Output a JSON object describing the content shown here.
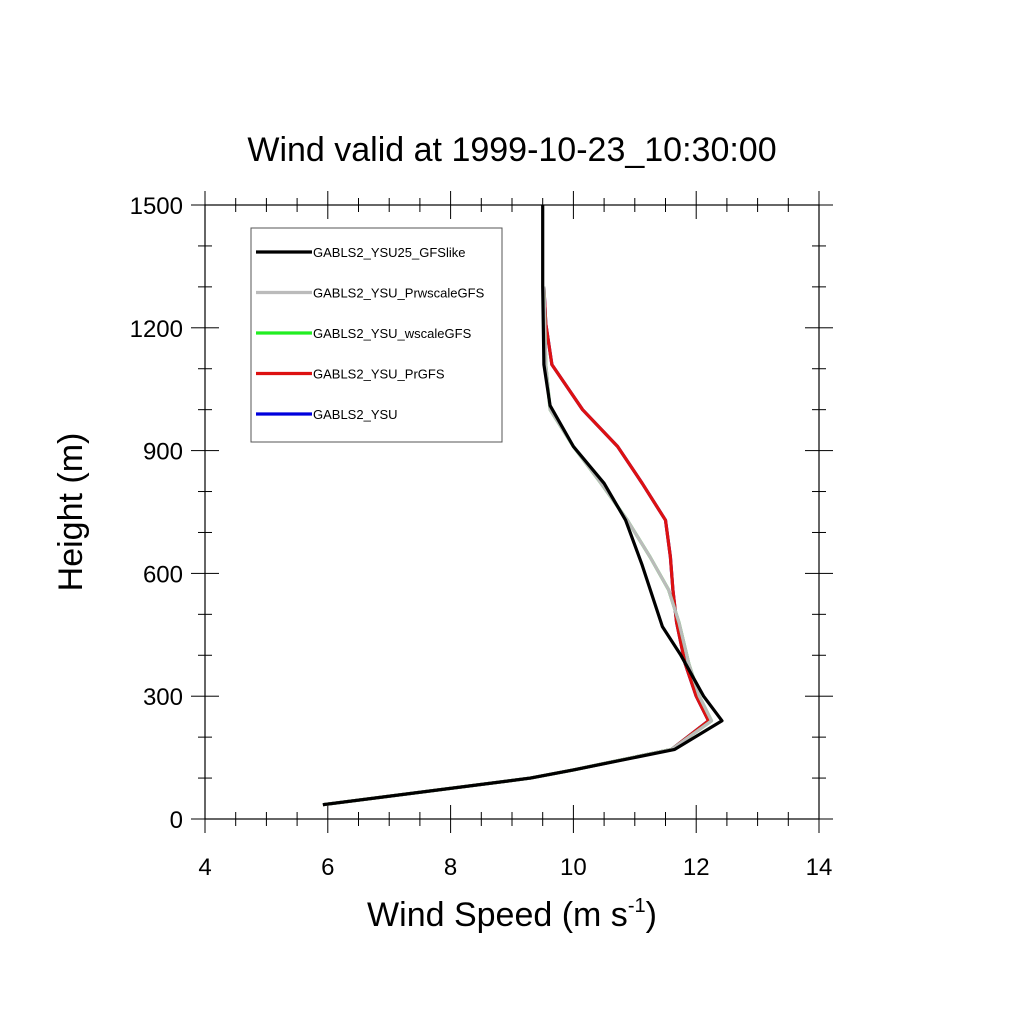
{
  "chart_data": {
    "type": "line",
    "title": "Wind valid at 1999-10-23_10:30:00",
    "xlabel": "Wind Speed (m s",
    "xlabel_sup": "-1",
    "xlabel_end": ")",
    "ylabel": "Height (m)",
    "xlim": [
      4,
      14
    ],
    "ylim": [
      0,
      1500
    ],
    "xticks": [
      4,
      6,
      8,
      10,
      12,
      14
    ],
    "yticks": [
      0,
      300,
      600,
      900,
      1200,
      1500
    ],
    "legend_position": "top-left",
    "grid": false,
    "series": [
      {
        "name": "GABLS2_YSU",
        "color": "#0000dd",
        "x": [
          5.92,
          9.3,
          10.0,
          11.6,
          12.2,
          12.0,
          11.82,
          11.68,
          11.62,
          11.58,
          11.5,
          11.12,
          10.72,
          10.15,
          9.65,
          9.55,
          9.52
        ],
        "y": [
          35,
          100,
          120,
          170,
          240,
          300,
          380,
          480,
          560,
          640,
          730,
          820,
          910,
          1000,
          1110,
          1210,
          1300
        ]
      },
      {
        "name": "GABLS2_YSU_PrGFS",
        "color": "#dd1111",
        "x": [
          5.92,
          9.3,
          10.0,
          11.6,
          12.2,
          12.0,
          11.82,
          11.68,
          11.62,
          11.58,
          11.5,
          11.12,
          10.72,
          10.15,
          9.65,
          9.55,
          9.52
        ],
        "y": [
          35,
          100,
          120,
          170,
          240,
          300,
          380,
          480,
          560,
          640,
          730,
          820,
          910,
          1000,
          1110,
          1210,
          1300
        ]
      },
      {
        "name": "GABLS2_YSU_wscaleGFS",
        "color": "#22ee22",
        "x": [
          5.92,
          9.3,
          10.0,
          11.6,
          12.25,
          12.05,
          11.88,
          11.72,
          11.55,
          11.25,
          10.88,
          10.45,
          10.0,
          9.62,
          9.55,
          9.52
        ],
        "y": [
          35,
          100,
          120,
          170,
          240,
          300,
          380,
          480,
          560,
          640,
          730,
          820,
          910,
          1000,
          1110,
          1300
        ]
      },
      {
        "name": "GABLS2_YSU_PrwscaleGFS",
        "color": "#bbbbbb",
        "x": [
          5.92,
          9.3,
          10.0,
          11.6,
          12.25,
          12.05,
          11.88,
          11.72,
          11.55,
          11.25,
          10.88,
          10.45,
          10.0,
          9.62,
          9.55,
          9.52
        ],
        "y": [
          35,
          100,
          120,
          170,
          240,
          300,
          380,
          480,
          560,
          640,
          730,
          820,
          910,
          1000,
          1110,
          1300
        ]
      },
      {
        "name": "GABLS2_YSU25_GFSlike",
        "color": "#000000",
        "x": [
          5.92,
          9.3,
          10.0,
          11.65,
          12.42,
          12.12,
          11.75,
          11.45,
          11.12,
          10.85,
          10.5,
          10.0,
          9.62,
          9.52,
          9.5,
          9.5
        ],
        "y": [
          35,
          100,
          120,
          170,
          240,
          300,
          400,
          470,
          620,
          730,
          820,
          910,
          1010,
          1110,
          1300,
          1500
        ]
      }
    ],
    "legend_order": [
      "GABLS2_YSU25_GFSlike",
      "GABLS2_YSU_PrwscaleGFS",
      "GABLS2_YSU_wscaleGFS",
      "GABLS2_YSU_PrGFS",
      "GABLS2_YSU"
    ]
  }
}
